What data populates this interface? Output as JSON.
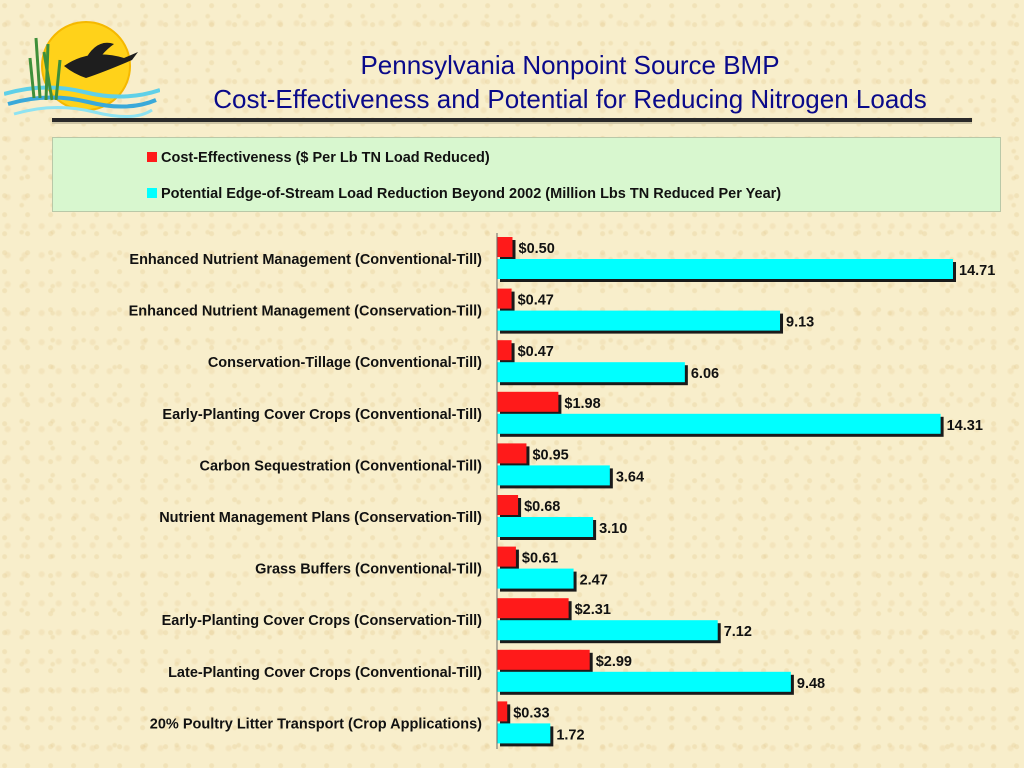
{
  "title": {
    "line1": "Pennsylvania Nonpoint Source BMP",
    "line2": "Cost-Effectiveness and Potential for Reducing Nitrogen Loads"
  },
  "colors": {
    "cost": "#ff1a1a",
    "potential": "#00ffff",
    "title": "#0a0a8a",
    "legend_bg": "#d8f7cf",
    "background": "#f8eecb"
  },
  "chart_data": {
    "type": "bar",
    "orientation": "horizontal",
    "categories": [
      "Enhanced Nutrient Management (Conventional-Till)",
      "Enhanced Nutrient Management (Conservation-Till)",
      "Conservation-Tillage (Conventional-Till)",
      "Early-Planting Cover Crops (Conventional-Till)",
      "Carbon Sequestration (Conventional-Till)",
      "Nutrient Management Plans (Conservation-Till)",
      "Grass Buffers (Conventional-Till)",
      "Early-Planting Cover Crops (Conservation-Till)",
      "Late-Planting Cover Crops (Conventional-Till)",
      "20% Poultry Litter Transport (Crop Applications)"
    ],
    "series": [
      {
        "name": "Cost-Effectiveness ($ Per Lb TN Load Reduced)",
        "color": "#ff1a1a",
        "values": [
          0.5,
          0.47,
          0.47,
          1.98,
          0.95,
          0.68,
          0.61,
          2.31,
          2.99,
          0.33
        ],
        "labels": [
          "$0.50",
          "$0.47",
          "$0.47",
          "$1.98",
          "$0.95",
          "$0.68",
          "$0.61",
          "$2.31",
          "$2.99",
          "$0.33"
        ]
      },
      {
        "name": "Potential Edge-of-Stream Load Reduction Beyond 2002 (Million Lbs TN Reduced Per Year)",
        "color": "#00ffff",
        "values": [
          14.71,
          9.13,
          6.06,
          14.31,
          3.64,
          3.1,
          2.47,
          7.12,
          9.48,
          1.72
        ],
        "labels": [
          "14.71",
          "9.13",
          "6.06",
          "14.31",
          "3.64",
          "3.10",
          "2.47",
          "7.12",
          "9.48",
          "1.72"
        ]
      }
    ],
    "xlim": [
      0,
      15
    ],
    "grid": false,
    "legend_position": "top"
  }
}
